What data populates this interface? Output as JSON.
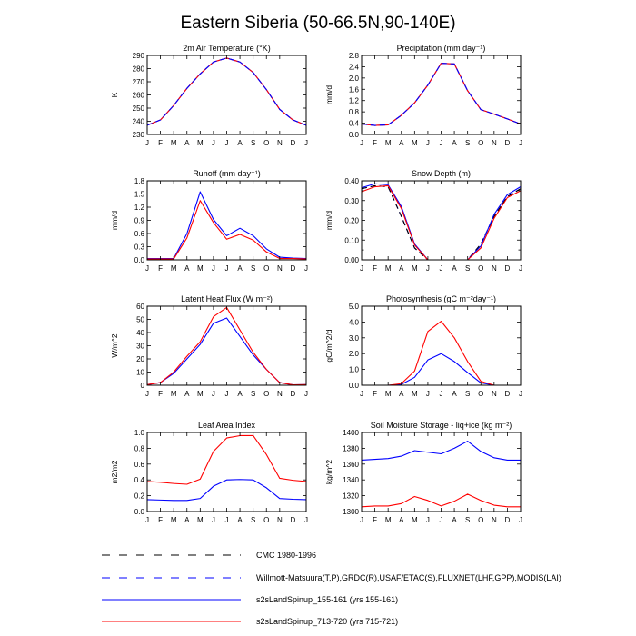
{
  "title": "Eastern Siberia (50-66.5N,90-140E)",
  "months": [
    "J",
    "F",
    "M",
    "A",
    "M",
    "J",
    "J",
    "A",
    "S",
    "O",
    "N",
    "D",
    "J"
  ],
  "series_styles": {
    "cmc": {
      "color": "#000000",
      "dashed": true
    },
    "obs": {
      "color": "#0000ff",
      "dashed": true
    },
    "run155": {
      "color": "#0000ff",
      "dashed": false
    },
    "run713": {
      "color": "#ff0000",
      "dashed": false
    }
  },
  "legend": [
    {
      "key": "cmc",
      "label": "CMC 1980-1996"
    },
    {
      "key": "obs",
      "label": "Willmott-Matsuura(T,P),GRDC(R),USAF/ETAC(S),FLUXNET(LHF,GPP),MODIS(LAI)"
    },
    {
      "key": "run155",
      "label": "s2sLandSpinup_155-161 (yrs 155-161)"
    },
    {
      "key": "run713",
      "label": "s2sLandSpinup_713-720 (yrs 715-721)"
    }
  ],
  "chart_data": [
    {
      "type": "line",
      "title": "2m Air Temperature (°K)",
      "ylabel": "K",
      "ylim": [
        230,
        290
      ],
      "yticks": [
        230,
        240,
        250,
        260,
        270,
        280,
        290
      ],
      "ytick_labels": [
        "230",
        "240",
        "250",
        "260",
        "270",
        "280",
        "290"
      ],
      "x": [
        "J",
        "F",
        "M",
        "A",
        "M",
        "J",
        "J",
        "A",
        "S",
        "O",
        "N",
        "D",
        "J"
      ],
      "series": [
        {
          "style": "run155",
          "values": [
            237,
            241,
            252,
            265,
            276,
            285,
            288,
            285,
            277,
            264,
            249,
            241,
            237
          ]
        },
        {
          "style": "run713",
          "values": [
            237,
            241,
            252,
            265,
            276,
            285,
            288,
            285,
            277,
            264,
            249,
            241,
            237
          ]
        },
        {
          "style": "obs",
          "values": [
            237,
            241,
            252,
            265,
            276,
            285,
            288,
            285,
            277,
            264,
            249,
            241,
            237
          ]
        }
      ]
    },
    {
      "type": "line",
      "title": "Precipitation (mm day⁻¹)",
      "ylabel": "mm/d",
      "ylim": [
        0,
        2.8
      ],
      "yticks": [
        0,
        0.4,
        0.8,
        1.2,
        1.6,
        2.0,
        2.4,
        2.8
      ],
      "ytick_labels": [
        "0.0",
        "0.4",
        "0.8",
        "1.2",
        "1.6",
        "2.0",
        "2.4",
        "2.8"
      ],
      "x": [
        "J",
        "F",
        "M",
        "A",
        "M",
        "J",
        "J",
        "A",
        "S",
        "O",
        "N",
        "D",
        "J"
      ],
      "series": [
        {
          "style": "run155",
          "values": [
            0.37,
            0.32,
            0.34,
            0.68,
            1.12,
            1.75,
            2.52,
            2.5,
            1.55,
            0.88,
            0.72,
            0.55,
            0.37
          ]
        },
        {
          "style": "run713",
          "values": [
            0.37,
            0.32,
            0.34,
            0.68,
            1.12,
            1.75,
            2.52,
            2.5,
            1.55,
            0.88,
            0.72,
            0.55,
            0.37
          ]
        },
        {
          "style": "obs",
          "values": [
            0.37,
            0.32,
            0.34,
            0.68,
            1.12,
            1.75,
            2.52,
            2.5,
            1.55,
            0.88,
            0.72,
            0.55,
            0.37
          ]
        }
      ]
    },
    {
      "type": "line",
      "title": "Runoff (mm day⁻¹)",
      "ylabel": "mm/d",
      "ylim": [
        0,
        1.8
      ],
      "yticks": [
        0,
        0.3,
        0.6,
        0.9,
        1.2,
        1.5,
        1.8
      ],
      "ytick_labels": [
        "0.0",
        "0.3",
        "0.6",
        "0.9",
        "1.2",
        "1.5",
        "1.8"
      ],
      "x": [
        "J",
        "F",
        "M",
        "A",
        "M",
        "J",
        "J",
        "A",
        "S",
        "O",
        "N",
        "D",
        "J"
      ],
      "series": [
        {
          "style": "run155",
          "values": [
            0.03,
            0.03,
            0.03,
            0.6,
            1.55,
            0.92,
            0.55,
            0.72,
            0.55,
            0.25,
            0.06,
            0.04,
            0.03
          ]
        },
        {
          "style": "run713",
          "values": [
            0.02,
            0.02,
            0.02,
            0.5,
            1.35,
            0.85,
            0.47,
            0.58,
            0.45,
            0.18,
            0.03,
            0.03,
            0.02
          ]
        }
      ]
    },
    {
      "type": "line",
      "title": "Snow Depth (m)",
      "ylabel": "mm/d",
      "ylim": [
        0,
        0.4
      ],
      "yticks": [
        0,
        0.05,
        0.1,
        0.15,
        0.2,
        0.25,
        0.3,
        0.35,
        0.4
      ],
      "ytick_labels": [
        "0.00",
        "",
        "0.10",
        "",
        "0.20",
        "",
        "0.30",
        "",
        "0.40"
      ],
      "x": [
        "J",
        "F",
        "M",
        "A",
        "M",
        "J",
        "J",
        "A",
        "S",
        "O",
        "N",
        "D",
        "J"
      ],
      "series": [
        {
          "style": "obs",
          "values": [
            0.36,
            0.375,
            0.37,
            0.22,
            0.06,
            0.0,
            0.0,
            0.0,
            0.0,
            0.08,
            0.22,
            0.32,
            0.36
          ]
        },
        {
          "style": "cmc",
          "values": [
            0.36,
            0.375,
            0.37,
            0.22,
            0.06,
            0.0,
            0.0,
            0.0,
            0.0,
            0.08,
            0.22,
            0.32,
            0.36
          ]
        },
        {
          "style": "run155",
          "values": [
            0.365,
            0.385,
            0.38,
            0.27,
            0.08,
            0.0,
            0.0,
            0.0,
            0.0,
            0.07,
            0.23,
            0.33,
            0.37
          ]
        },
        {
          "style": "run713",
          "values": [
            0.345,
            0.37,
            0.375,
            0.26,
            0.075,
            0.0,
            0.0,
            0.0,
            0.0,
            0.06,
            0.21,
            0.315,
            0.35
          ]
        }
      ]
    },
    {
      "type": "line",
      "title": "Latent Heat Flux (W m⁻²)",
      "ylabel": "W/m^2",
      "ylim": [
        0,
        60
      ],
      "yticks": [
        0,
        10,
        20,
        30,
        40,
        50,
        60
      ],
      "ytick_labels": [
        "0",
        "10",
        "20",
        "30",
        "40",
        "50",
        "60"
      ],
      "x": [
        "J",
        "F",
        "M",
        "A",
        "M",
        "J",
        "J",
        "A",
        "S",
        "O",
        "N",
        "D",
        "J"
      ],
      "series": [
        {
          "style": "run155",
          "values": [
            0.5,
            2,
            9,
            20,
            31,
            47,
            51,
            37,
            23,
            12,
            2,
            0.3,
            0.5
          ]
        },
        {
          "style": "run713",
          "values": [
            0.5,
            2,
            10,
            22,
            33,
            52,
            59,
            42,
            25,
            12,
            2,
            0.3,
            0.5
          ]
        }
      ]
    },
    {
      "type": "line",
      "title": "Photosynthesis (gC m⁻²day⁻¹)",
      "ylabel": "gC/m^2/d",
      "ylim": [
        0,
        5.0
      ],
      "yticks": [
        0,
        1,
        2,
        3,
        4,
        5
      ],
      "ytick_labels": [
        "0.0",
        "1.0",
        "2.0",
        "3.0",
        "4.0",
        "5.0"
      ],
      "x": [
        "J",
        "F",
        "M",
        "A",
        "M",
        "J",
        "J",
        "A",
        "S",
        "O",
        "N",
        "D",
        "J"
      ],
      "series": [
        {
          "style": "run155",
          "values": [
            0,
            0,
            0,
            0.05,
            0.5,
            1.6,
            2.0,
            1.5,
            0.8,
            0.15,
            0,
            0,
            0
          ]
        },
        {
          "style": "run713",
          "values": [
            0,
            0,
            0,
            0.1,
            0.9,
            3.4,
            4.05,
            3.0,
            1.5,
            0.25,
            0,
            0,
            0
          ]
        }
      ]
    },
    {
      "type": "line",
      "title": "Leaf Area Index",
      "ylabel": "m2/m2",
      "ylim": [
        0,
        1.0
      ],
      "yticks": [
        0,
        0.2,
        0.4,
        0.6,
        0.8,
        1.0
      ],
      "ytick_labels": [
        "0.0",
        "0.2",
        "0.4",
        "0.6",
        "0.8",
        "1.0"
      ],
      "x": [
        "J",
        "F",
        "M",
        "A",
        "M",
        "J",
        "J",
        "A",
        "S",
        "O",
        "N",
        "D",
        "J"
      ],
      "series": [
        {
          "style": "run155",
          "values": [
            0.15,
            0.145,
            0.14,
            0.14,
            0.165,
            0.32,
            0.4,
            0.405,
            0.4,
            0.3,
            0.165,
            0.155,
            0.15
          ]
        },
        {
          "style": "run713",
          "values": [
            0.38,
            0.37,
            0.355,
            0.345,
            0.41,
            0.76,
            0.93,
            0.96,
            0.96,
            0.72,
            0.42,
            0.395,
            0.38
          ]
        }
      ]
    },
    {
      "type": "line",
      "title": "Soil Moisture Storage - liq+ice (kg m⁻²)",
      "ylabel": "kg/m^2",
      "ylim": [
        1300,
        1400
      ],
      "yticks": [
        1300,
        1320,
        1340,
        1360,
        1380,
        1400
      ],
      "ytick_labels": [
        "1300",
        "1320",
        "1340",
        "1360",
        "1380",
        "1400"
      ],
      "x": [
        "J",
        "F",
        "M",
        "A",
        "M",
        "J",
        "J",
        "A",
        "S",
        "O",
        "N",
        "D",
        "J"
      ],
      "series": [
        {
          "style": "run155",
          "values": [
            1365,
            1366,
            1367,
            1370,
            1377,
            1375,
            1373,
            1380,
            1389,
            1376,
            1368,
            1365,
            1365
          ]
        },
        {
          "style": "run713",
          "values": [
            1306,
            1307,
            1307,
            1310,
            1319,
            1314,
            1307,
            1313,
            1322,
            1314,
            1308,
            1306,
            1306
          ]
        }
      ]
    }
  ]
}
